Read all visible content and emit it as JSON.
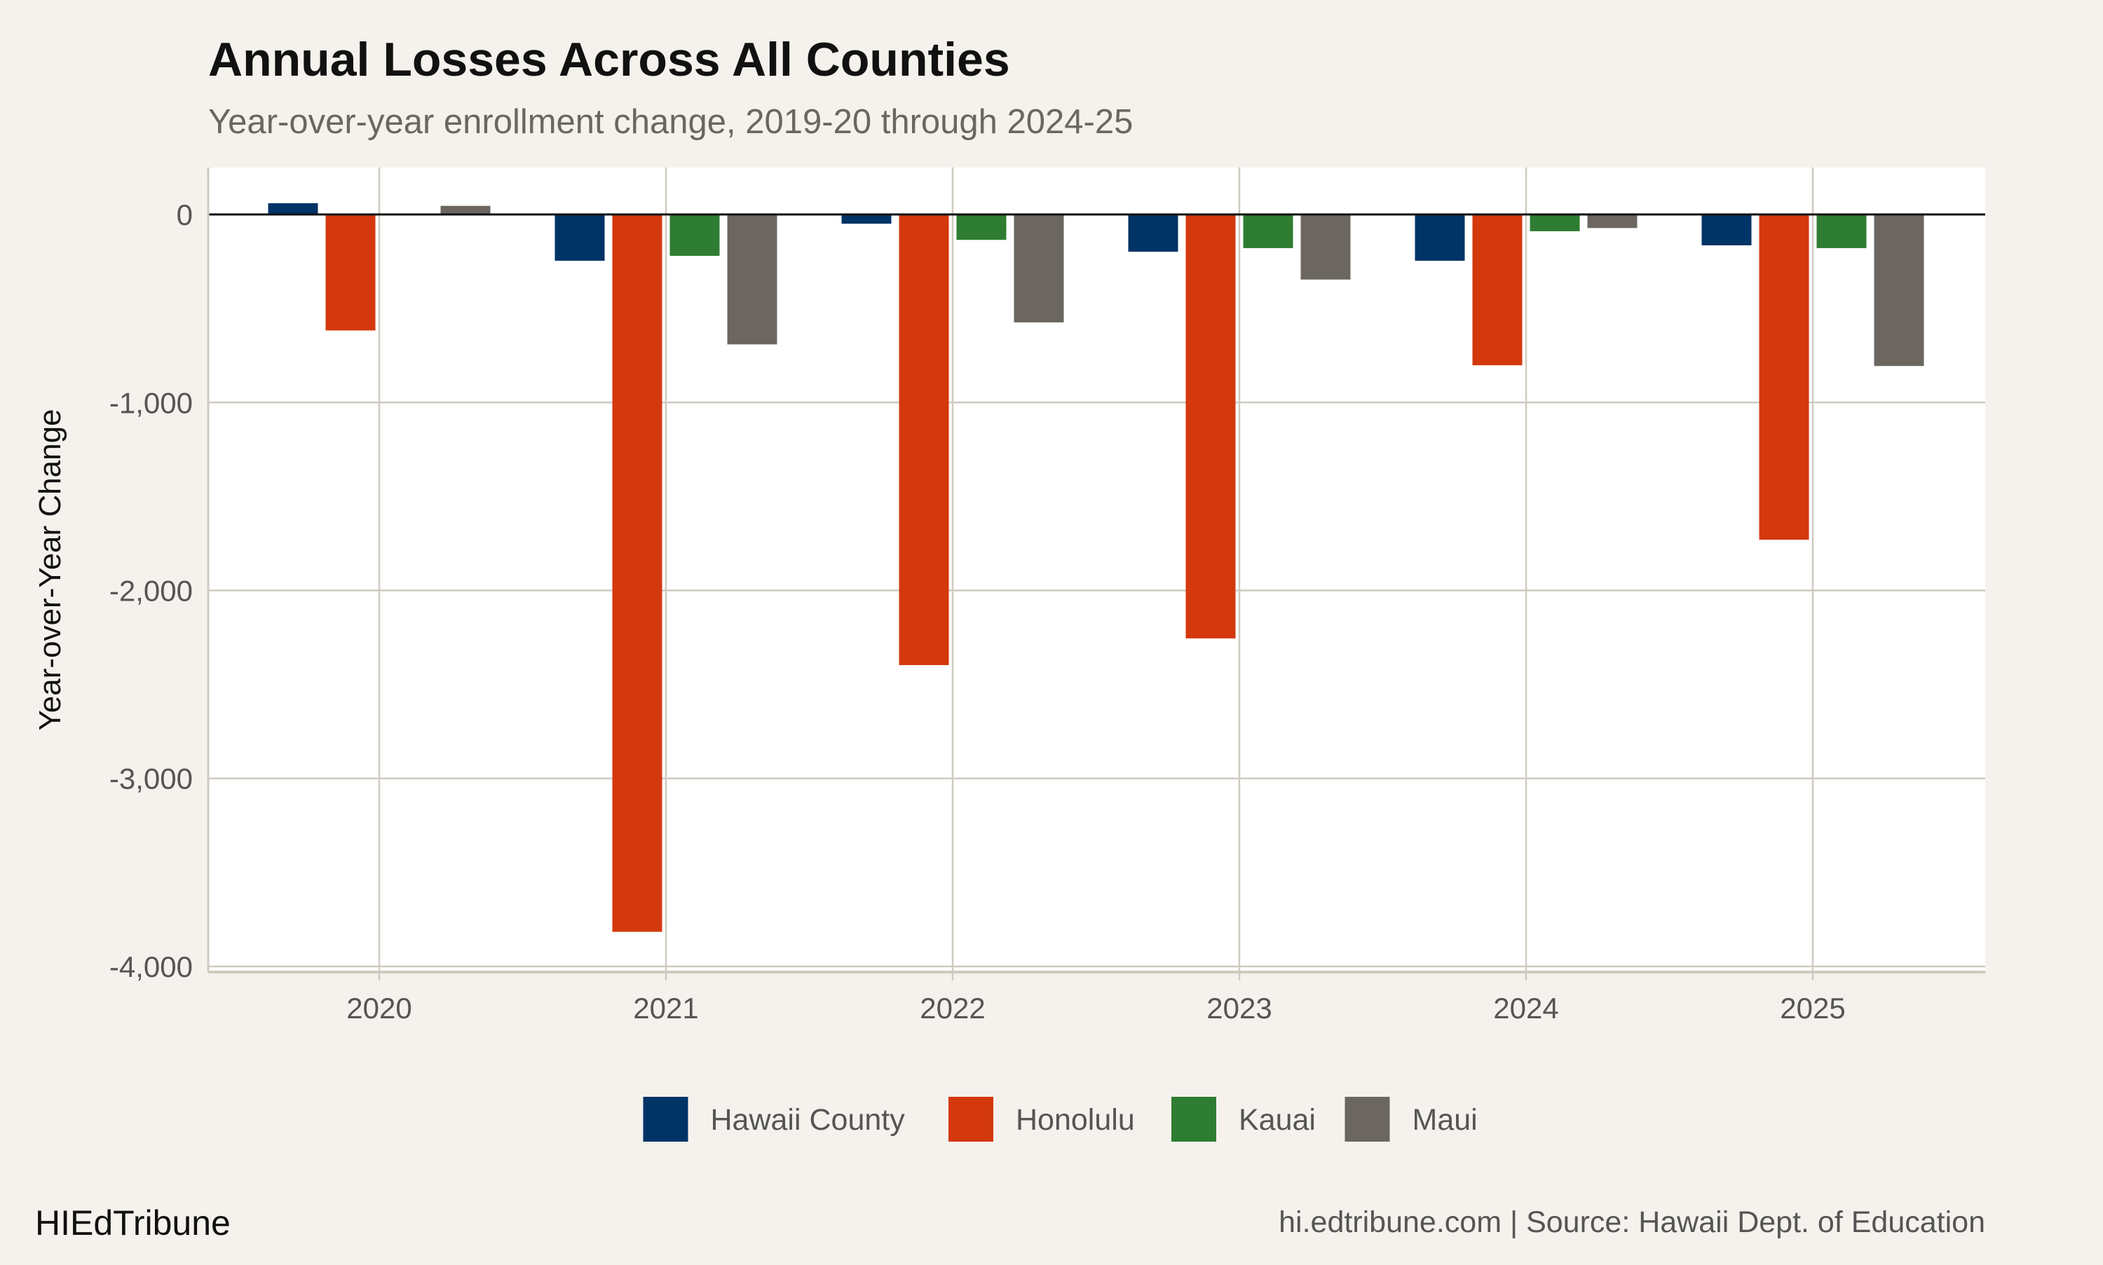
{
  "chart_data": {
    "type": "bar",
    "title": "Annual Losses Across All Counties",
    "subtitle": "Year-over-year enrollment change, 2019-20 through 2024-25",
    "xlabel": "",
    "ylabel": "Year-over-Year Change",
    "categories": [
      "2020",
      "2021",
      "2022",
      "2023",
      "2024",
      "2025"
    ],
    "ylim": [
      -4030,
      250
    ],
    "yticks": [
      0,
      -1000,
      -2000,
      -3000,
      -4000
    ],
    "ytick_labels": [
      "0",
      "-1,000",
      "-2,000",
      "-3,000",
      "-4,000"
    ],
    "grid": true,
    "legend_position": "bottom",
    "series": [
      {
        "name": "Hawaii County",
        "color": "#003366",
        "values": [
          60,
          -246,
          -49,
          -198,
          -246,
          -164
        ]
      },
      {
        "name": "Honolulu",
        "color": "#d4380d",
        "values": [
          -617,
          -3816,
          -2397,
          -2255,
          -802,
          -1730
        ]
      },
      {
        "name": "Kauai",
        "color": "#2e7d32",
        "values": [
          0,
          -220,
          -135,
          -179,
          -89,
          -179
        ]
      },
      {
        "name": "Maui",
        "color": "#6b6660",
        "values": [
          46,
          -691,
          -574,
          -346,
          -72,
          -806
        ]
      }
    ]
  },
  "footer": {
    "brand": "HIEdTribune",
    "source": "hi.edtribune.com | Source: Hawaii Dept. of Education"
  }
}
